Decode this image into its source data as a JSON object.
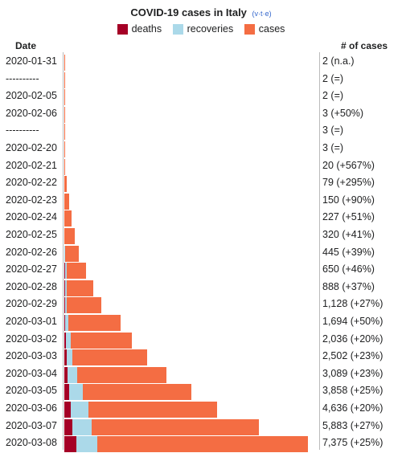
{
  "header": {
    "title": "COVID-19 cases in Italy",
    "vte": [
      "v",
      "t",
      "e"
    ],
    "column_date": "Date",
    "column_cases": "# of cases"
  },
  "legend": [
    {
      "label": "deaths",
      "color": "#a50026"
    },
    {
      "label": "recoveries",
      "color": "#abd9e9"
    },
    {
      "label": "cases",
      "color": "#f46d43"
    }
  ],
  "chart_data": {
    "type": "bar",
    "orientation": "horizontal",
    "stacked": true,
    "title": "COVID-19 cases in Italy",
    "xmax": 7375,
    "series_names": [
      "deaths",
      "recoveries",
      "cases"
    ],
    "rows": [
      {
        "date": "2020-01-31",
        "deaths": 0,
        "recoveries": 0,
        "cases": 2,
        "label": "2 (n.a.)"
      },
      {
        "date": "----------",
        "deaths": 0,
        "recoveries": 0,
        "cases": 2,
        "label": "2 (=)"
      },
      {
        "date": "2020-02-05",
        "deaths": 0,
        "recoveries": 0,
        "cases": 2,
        "label": "2 (=)"
      },
      {
        "date": "2020-02-06",
        "deaths": 0,
        "recoveries": 0,
        "cases": 3,
        "label": "3 (+50%)"
      },
      {
        "date": "----------",
        "deaths": 0,
        "recoveries": 0,
        "cases": 3,
        "label": "3 (=)"
      },
      {
        "date": "2020-02-20",
        "deaths": 0,
        "recoveries": 0,
        "cases": 3,
        "label": "3 (=)"
      },
      {
        "date": "2020-02-21",
        "deaths": 1,
        "recoveries": 0,
        "cases": 20,
        "label": "20 (+567%)"
      },
      {
        "date": "2020-02-22",
        "deaths": 2,
        "recoveries": 1,
        "cases": 79,
        "label": "79 (+295%)"
      },
      {
        "date": "2020-02-23",
        "deaths": 3,
        "recoveries": 1,
        "cases": 150,
        "label": "150 (+90%)"
      },
      {
        "date": "2020-02-24",
        "deaths": 7,
        "recoveries": 1,
        "cases": 227,
        "label": "227 (+51%)"
      },
      {
        "date": "2020-02-25",
        "deaths": 10,
        "recoveries": 1,
        "cases": 320,
        "label": "320 (+41%)"
      },
      {
        "date": "2020-02-26",
        "deaths": 12,
        "recoveries": 3,
        "cases": 445,
        "label": "445 (+39%)"
      },
      {
        "date": "2020-02-27",
        "deaths": 17,
        "recoveries": 45,
        "cases": 650,
        "label": "650 (+46%)"
      },
      {
        "date": "2020-02-28",
        "deaths": 21,
        "recoveries": 46,
        "cases": 888,
        "label": "888 (+37%)"
      },
      {
        "date": "2020-02-29",
        "deaths": 29,
        "recoveries": 46,
        "cases": 1128,
        "label": "1,128 (+27%)"
      },
      {
        "date": "2020-03-01",
        "deaths": 34,
        "recoveries": 83,
        "cases": 1694,
        "label": "1,694 (+50%)"
      },
      {
        "date": "2020-03-02",
        "deaths": 52,
        "recoveries": 149,
        "cases": 2036,
        "label": "2,036 (+20%)"
      },
      {
        "date": "2020-03-03",
        "deaths": 79,
        "recoveries": 160,
        "cases": 2502,
        "label": "2,502 (+23%)"
      },
      {
        "date": "2020-03-04",
        "deaths": 107,
        "recoveries": 276,
        "cases": 3089,
        "label": "3,089 (+23%)"
      },
      {
        "date": "2020-03-05",
        "deaths": 148,
        "recoveries": 414,
        "cases": 3858,
        "label": "3,858 (+25%)"
      },
      {
        "date": "2020-03-06",
        "deaths": 197,
        "recoveries": 523,
        "cases": 4636,
        "label": "4,636 (+20%)"
      },
      {
        "date": "2020-03-07",
        "deaths": 233,
        "recoveries": 589,
        "cases": 5883,
        "label": "5,883 (+27%)"
      },
      {
        "date": "2020-03-08",
        "deaths": 366,
        "recoveries": 622,
        "cases": 7375,
        "label": "7,375 (+25%)"
      }
    ]
  }
}
